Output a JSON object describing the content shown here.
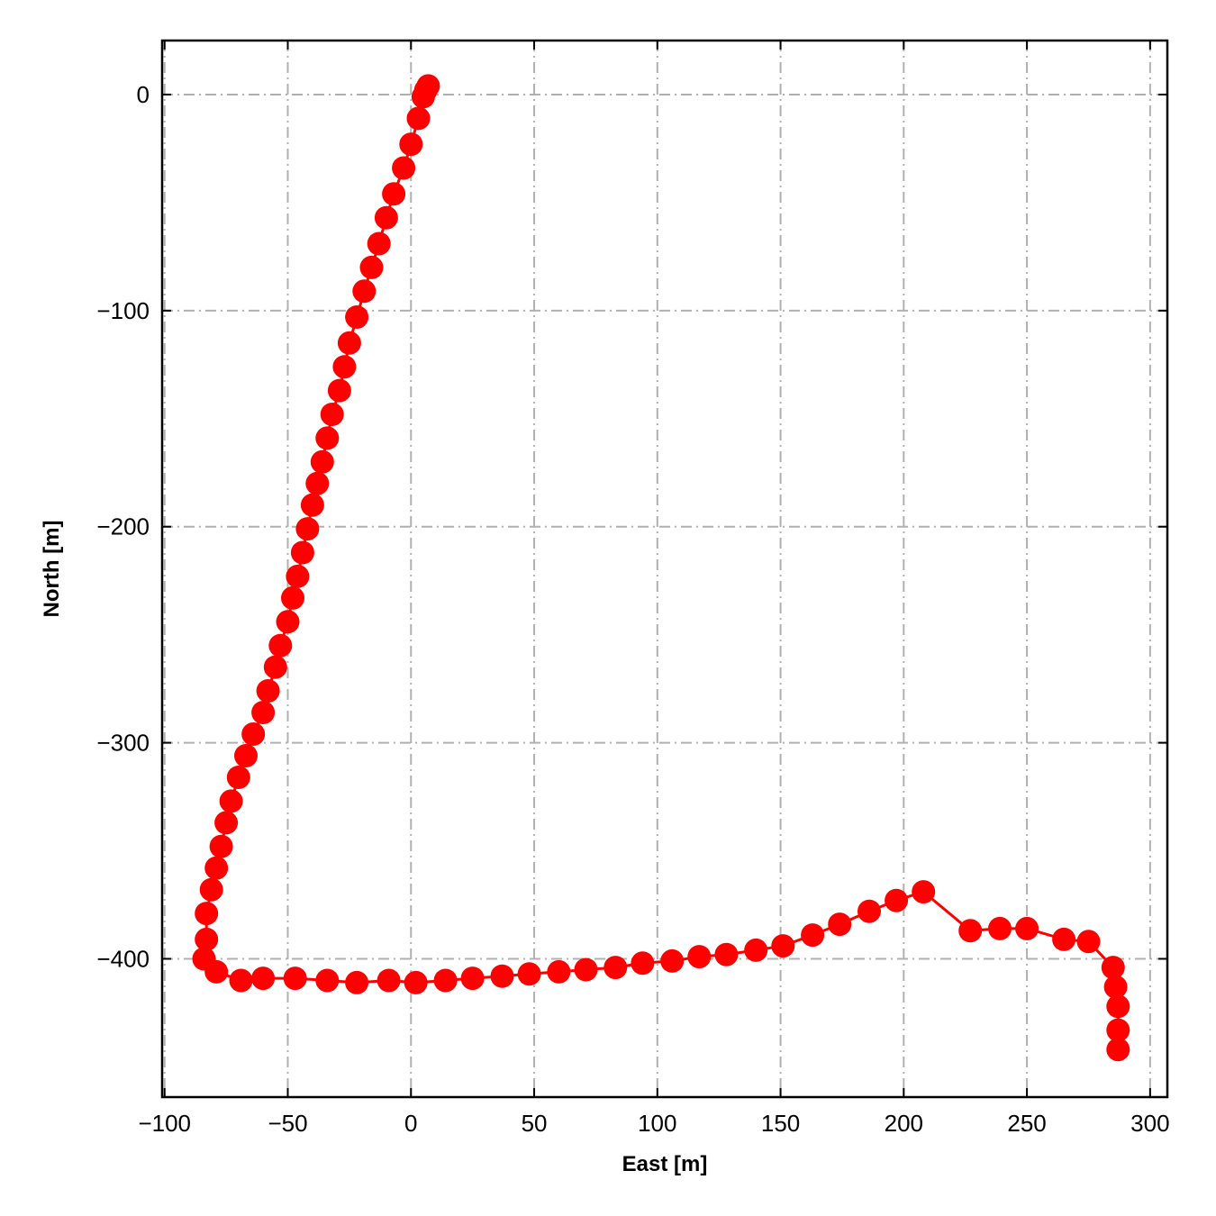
{
  "chart_data": {
    "type": "scatter",
    "title": "",
    "xlabel": "East [m]",
    "ylabel": "North [m]",
    "xlim": [
      -101,
      307
    ],
    "ylim": [
      -464,
      25
    ],
    "xticks": [
      -100,
      -50,
      0,
      50,
      100,
      150,
      200,
      250,
      300
    ],
    "yticks": [
      0,
      -100,
      -200,
      -300,
      -400
    ],
    "xtick_labels": [
      "−100",
      "−50",
      "0",
      "50",
      "100",
      "150",
      "200",
      "250",
      "300"
    ],
    "ytick_labels": [
      "0",
      "−100",
      "−200",
      "−300",
      "−400"
    ],
    "grid": true,
    "legend": "none",
    "series": [
      {
        "color": "#ff0000",
        "marker": "circle",
        "line": true,
        "points": [
          [
            7,
            4
          ],
          [
            6,
            2
          ],
          [
            5,
            -1
          ],
          [
            3,
            -11
          ],
          [
            0,
            -23
          ],
          [
            -3,
            -34
          ],
          [
            -7,
            -46
          ],
          [
            -10,
            -57
          ],
          [
            -13,
            -69
          ],
          [
            -16,
            -80
          ],
          [
            -19,
            -91
          ],
          [
            -22,
            -103
          ],
          [
            -25,
            -115
          ],
          [
            -27,
            -126
          ],
          [
            -29,
            -137
          ],
          [
            -32,
            -148
          ],
          [
            -34,
            -159
          ],
          [
            -36,
            -170
          ],
          [
            -38,
            -180
          ],
          [
            -40,
            -190
          ],
          [
            -42,
            -201
          ],
          [
            -44,
            -212
          ],
          [
            -46,
            -223
          ],
          [
            -48,
            -233
          ],
          [
            -50,
            -244
          ],
          [
            -53,
            -255
          ],
          [
            -55,
            -265
          ],
          [
            -58,
            -276
          ],
          [
            -60,
            -286
          ],
          [
            -64,
            -296
          ],
          [
            -67,
            -306
          ],
          [
            -70,
            -316
          ],
          [
            -73,
            -327
          ],
          [
            -75,
            -337
          ],
          [
            -77,
            -348
          ],
          [
            -79,
            -358
          ],
          [
            -81,
            -368
          ],
          [
            -83,
            -379
          ],
          [
            -83,
            -391
          ],
          [
            -84,
            -400
          ],
          [
            -79,
            -406
          ],
          [
            -69,
            -410
          ],
          [
            -60,
            -409
          ],
          [
            -47,
            -409
          ],
          [
            -34,
            -410
          ],
          [
            -22,
            -411
          ],
          [
            -9,
            -410
          ],
          [
            2,
            -411
          ],
          [
            14,
            -410
          ],
          [
            25,
            -409
          ],
          [
            37,
            -408
          ],
          [
            48,
            -407
          ],
          [
            60,
            -406
          ],
          [
            71,
            -405
          ],
          [
            83,
            -404
          ],
          [
            94,
            -402
          ],
          [
            106,
            -401
          ],
          [
            117,
            -399
          ],
          [
            128,
            -398
          ],
          [
            140,
            -396
          ],
          [
            151,
            -394
          ],
          [
            163,
            -389
          ],
          [
            174,
            -384
          ],
          [
            186,
            -378
          ],
          [
            197,
            -373
          ],
          [
            208,
            -369
          ],
          [
            227,
            -387
          ],
          [
            239,
            -386
          ],
          [
            250,
            -386
          ],
          [
            265,
            -391
          ],
          [
            275,
            -392
          ],
          [
            285,
            -404
          ],
          [
            286,
            -413
          ],
          [
            287,
            -422
          ],
          [
            287,
            -433
          ],
          [
            287,
            -442
          ]
        ]
      }
    ]
  }
}
